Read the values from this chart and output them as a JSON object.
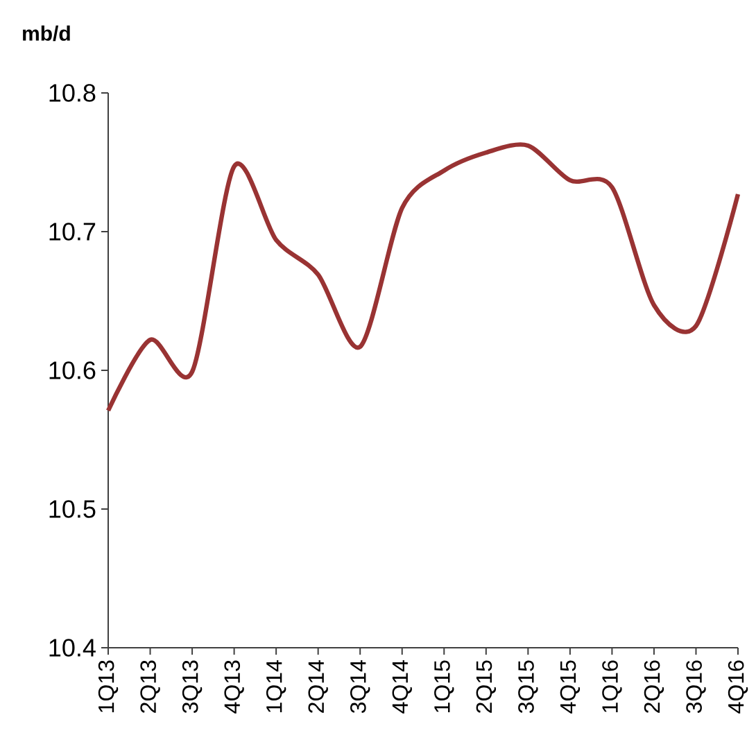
{
  "chart_data": {
    "type": "line",
    "ylabel": "mb/d",
    "categories": [
      "1Q13",
      "2Q13",
      "3Q13",
      "4Q13",
      "1Q14",
      "2Q14",
      "3Q14",
      "4Q14",
      "1Q15",
      "2Q15",
      "3Q15",
      "4Q15",
      "1Q16",
      "2Q16",
      "3Q16",
      "4Q16"
    ],
    "series": [
      {
        "color": "#993333",
        "values": [
          10.571,
          10.622,
          10.599,
          10.747,
          10.694,
          10.669,
          10.617,
          10.717,
          10.744,
          10.757,
          10.762,
          10.737,
          10.732,
          10.647,
          10.632,
          10.727
        ]
      }
    ],
    "ylim": [
      10.4,
      10.8
    ],
    "yticks": [
      10.4,
      10.5,
      10.6,
      10.7,
      10.8
    ],
    "grid": false,
    "marker": "none",
    "line_style": "solid"
  }
}
